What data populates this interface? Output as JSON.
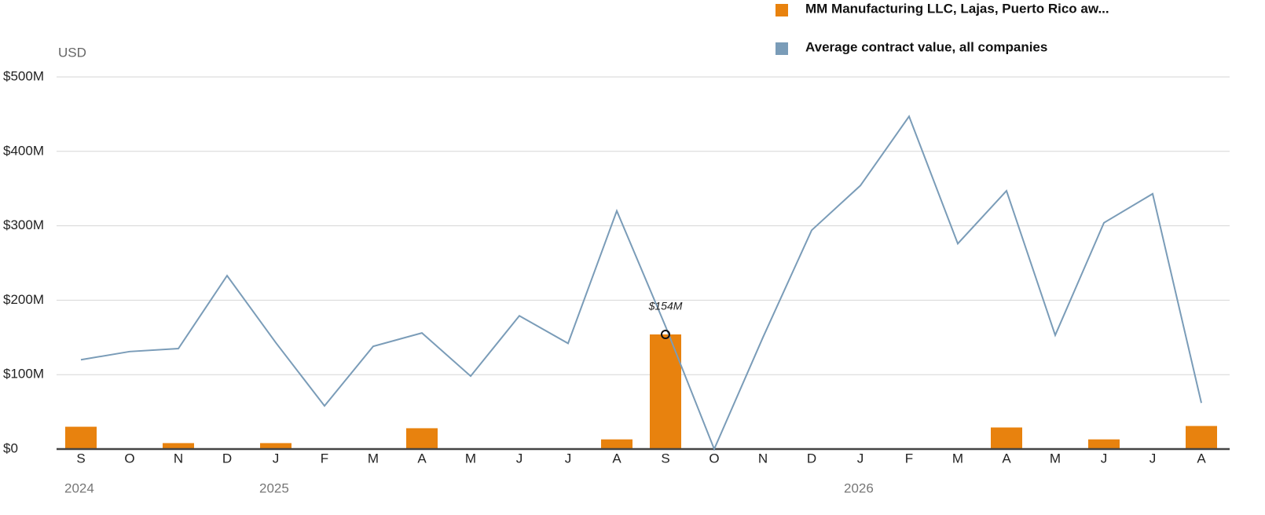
{
  "chart_data": {
    "type": "bar-line",
    "y_axis_label": "USD",
    "categories": [
      "S",
      "O",
      "N",
      "D",
      "J",
      "F",
      "M",
      "A",
      "M",
      "J",
      "J",
      "A",
      "S",
      "O",
      "N",
      "D",
      "J",
      "F",
      "M",
      "A",
      "M",
      "J",
      "J",
      "A"
    ],
    "years": [
      "2024",
      null,
      null,
      null,
      "2025",
      null,
      null,
      null,
      null,
      null,
      null,
      null,
      null,
      null,
      null,
      null,
      "2026",
      null,
      null,
      null,
      null,
      null,
      null,
      null
    ],
    "series": [
      {
        "name": "MM Manufacturing LLC, Lajas, Puerto Rico aw...",
        "type": "bar",
        "color": "#e8820e",
        "values": [
          30,
          0,
          8,
          0,
          8,
          0,
          0,
          28,
          0,
          0,
          0,
          13,
          154,
          0,
          0,
          0,
          0,
          0,
          0,
          29,
          0,
          13,
          0,
          31
        ]
      },
      {
        "name": "Average contract value, all companies",
        "type": "line",
        "color": "#7a9cb8",
        "values": [
          120,
          131,
          135,
          233,
          143,
          58,
          138,
          156,
          98,
          179,
          142,
          320,
          165,
          0,
          150,
          294,
          354,
          447,
          276,
          347,
          153,
          304,
          343,
          62
        ]
      }
    ],
    "annotation": {
      "text": "$154M",
      "series": 0,
      "index": 12
    },
    "ylim": [
      0,
      500
    ],
    "yticks": [
      {
        "value": 0,
        "label": "$0"
      },
      {
        "value": 100,
        "label": "$100M"
      },
      {
        "value": 200,
        "label": "$200M"
      },
      {
        "value": 300,
        "label": "$300M"
      },
      {
        "value": 400,
        "label": "$400M"
      },
      {
        "value": 500,
        "label": "$500M"
      }
    ],
    "grid": true
  }
}
